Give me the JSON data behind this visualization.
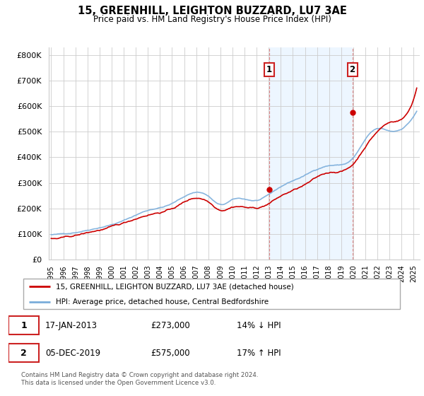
{
  "title": "15, GREENHILL, LEIGHTON BUZZARD, LU7 3AE",
  "subtitle": "Price paid vs. HM Land Registry's House Price Index (HPI)",
  "ylabel_ticks": [
    "£0",
    "£100K",
    "£200K",
    "£300K",
    "£400K",
    "£500K",
    "£600K",
    "£700K",
    "£800K"
  ],
  "ytick_values": [
    0,
    100000,
    200000,
    300000,
    400000,
    500000,
    600000,
    700000,
    800000
  ],
  "ylim": [
    0,
    830000
  ],
  "xlim_start": 1994.8,
  "xlim_end": 2025.5,
  "bg_color": "#ffffff",
  "plot_bg": "#ffffff",
  "grid_color": "#cccccc",
  "red_color": "#cc0000",
  "blue_color": "#7aaddb",
  "blue_fill_color": "#ddeeff",
  "point1_x": 2013.04,
  "point1_y": 273000,
  "point2_x": 2019.92,
  "point2_y": 575000,
  "vline_color": "#dd8888",
  "box_border_color": "#cc2222",
  "legend_line1": "15, GREENHILL, LEIGHTON BUZZARD, LU7 3AE (detached house)",
  "legend_line2": "HPI: Average price, detached house, Central Bedfordshire",
  "ann1_label": "1",
  "ann1_date": "17-JAN-2013",
  "ann1_price": "£273,000",
  "ann1_hpi": "14% ↓ HPI",
  "ann2_label": "2",
  "ann2_date": "05-DEC-2019",
  "ann2_price": "£575,000",
  "ann2_hpi": "17% ↑ HPI",
  "footer": "Contains HM Land Registry data © Crown copyright and database right 2024.\nThis data is licensed under the Open Government Licence v3.0."
}
